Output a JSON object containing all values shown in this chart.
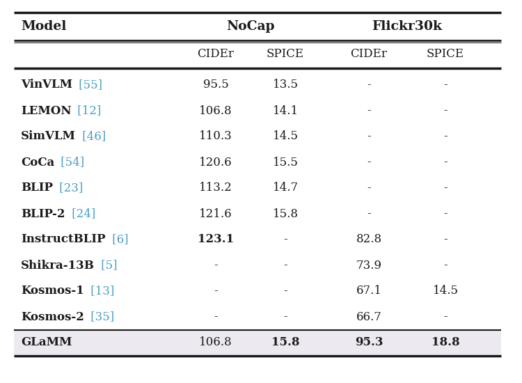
{
  "rows": [
    {
      "model": "VinVLM",
      "ref": "[55]",
      "nocap_cider": "95.5",
      "nocap_spice": "13.5",
      "flickr_cider": "-",
      "flickr_spice": "-",
      "bold": {}
    },
    {
      "model": "LEMON",
      "ref": "[12]",
      "nocap_cider": "106.8",
      "nocap_spice": "14.1",
      "flickr_cider": "-",
      "flickr_spice": "-",
      "bold": {}
    },
    {
      "model": "SimVLM",
      "ref": "[46]",
      "nocap_cider": "110.3",
      "nocap_spice": "14.5",
      "flickr_cider": "-",
      "flickr_spice": "-",
      "bold": {}
    },
    {
      "model": "CoCa",
      "ref": "[54]",
      "nocap_cider": "120.6",
      "nocap_spice": "15.5",
      "flickr_cider": "-",
      "flickr_spice": "-",
      "bold": {}
    },
    {
      "model": "BLIP",
      "ref": "[23]",
      "nocap_cider": "113.2",
      "nocap_spice": "14.7",
      "flickr_cider": "-",
      "flickr_spice": "-",
      "bold": {}
    },
    {
      "model": "BLIP-2",
      "ref": "[24]",
      "nocap_cider": "121.6",
      "nocap_spice": "15.8",
      "flickr_cider": "-",
      "flickr_spice": "-",
      "bold": {}
    },
    {
      "model": "InstructBLIP",
      "ref": "[6]",
      "nocap_cider": "123.1",
      "nocap_spice": "-",
      "flickr_cider": "82.8",
      "flickr_spice": "-",
      "bold": {
        "nocap_cider": true
      }
    },
    {
      "model": "Shikra-13B",
      "ref": "[5]",
      "nocap_cider": "-",
      "nocap_spice": "-",
      "flickr_cider": "73.9",
      "flickr_spice": "-",
      "bold": {}
    },
    {
      "model": "Kosmos-1",
      "ref": "[13]",
      "nocap_cider": "-",
      "nocap_spice": "-",
      "flickr_cider": "67.1",
      "flickr_spice": "14.5",
      "bold": {}
    },
    {
      "model": "Kosmos-2",
      "ref": "[35]",
      "nocap_cider": "-",
      "nocap_spice": "-",
      "flickr_cider": "66.7",
      "flickr_spice": "-",
      "bold": {}
    }
  ],
  "glamm_row": {
    "model": "GLaMM",
    "ref": "",
    "nocap_cider": "106.8",
    "nocap_spice": "15.8",
    "flickr_cider": "95.3",
    "flickr_spice": "18.8",
    "bold": {
      "nocap_spice": true,
      "flickr_cider": true,
      "flickr_spice": true
    }
  },
  "ref_color": "#4a9cc7",
  "glamm_bg": "#ede9f0",
  "text_color": "#1a1a1a",
  "line_color": "#1a1a1a",
  "fig_bg": "#ffffff",
  "fs_header": 13.5,
  "fs_sub": 12.0,
  "fs_body": 12.0
}
